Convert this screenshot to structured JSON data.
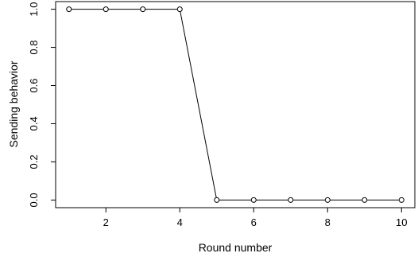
{
  "chart_data": {
    "type": "line",
    "title": "",
    "xlabel": "Round number",
    "ylabel": "Sending behavior",
    "x": [
      1,
      2,
      3,
      4,
      5,
      6,
      7,
      8,
      9,
      10
    ],
    "series": [
      {
        "values": [
          1,
          1,
          1,
          1,
          0,
          0,
          0,
          0,
          0,
          0
        ]
      }
    ],
    "xlim": [
      0.64,
      10.36
    ],
    "ylim": [
      -0.04,
      1.04
    ],
    "xticks": [
      2,
      4,
      6,
      8,
      10
    ],
    "xtick_labels": [
      "2",
      "4",
      "6",
      "8",
      "10"
    ],
    "yticks": [
      0.0,
      0.2,
      0.4,
      0.6,
      0.8,
      1.0
    ],
    "ytick_labels": [
      "0.0",
      "0.2",
      "0.4",
      "0.6",
      "0.8",
      "1.0"
    ],
    "grid": false,
    "marker": "open-circle",
    "line_color": "#000000"
  }
}
